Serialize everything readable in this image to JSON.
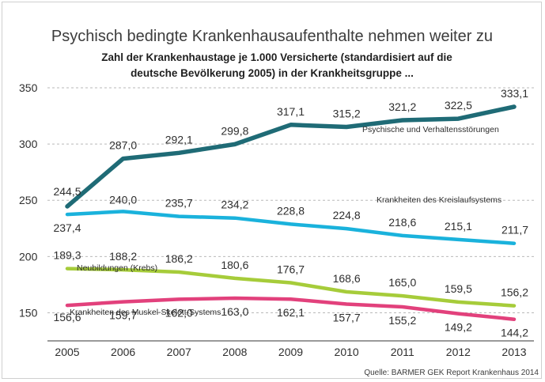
{
  "chart_data": {
    "type": "line",
    "title": "Psychisch bedingte Krankenhausaufenthalte nehmen weiter zu",
    "subtitle_lines": [
      "Zahl der Krankenhaustage je 1.000 Versicherte (standardisiert auf die",
      "deutsche Bevölkerung 2005) in der Krankheitsgruppe ..."
    ],
    "xlabel": "",
    "ylabel": "",
    "x": [
      "2005",
      "2006",
      "2007",
      "2008",
      "2009",
      "2010",
      "2011",
      "2012",
      "2013"
    ],
    "ylim": [
      125,
      350
    ],
    "yticks": [
      150,
      200,
      250,
      300,
      350
    ],
    "series": [
      {
        "name": "Psychische und Verhaltensstörungen",
        "color": "#1f6b76",
        "values": [
          244.5,
          287.0,
          292.1,
          299.8,
          317.1,
          315.2,
          321.2,
          322.5,
          333.1
        ],
        "labels": [
          "244,5",
          "287,0",
          "292,1",
          "299,8",
          "317,1",
          "315,2",
          "321,2",
          "322,5",
          "333,1"
        ]
      },
      {
        "name": "Krankheiten des Kreislaufsystems",
        "color": "#1ab2dc",
        "values": [
          237.4,
          240.0,
          235.7,
          234.2,
          228.8,
          224.8,
          218.6,
          215.1,
          211.7
        ],
        "labels": [
          "237,4",
          "240,0",
          "235,7",
          "234,2",
          "228,8",
          "224,8",
          "218,6",
          "215,1",
          "211,7"
        ]
      },
      {
        "name": "Neubildungen (Krebs)",
        "color": "#a6cc3a",
        "values": [
          189.3,
          188.2,
          186.2,
          180.6,
          176.7,
          168.6,
          165.0,
          159.5,
          156.2
        ],
        "labels": [
          "189,3",
          "188,2",
          "186,2",
          "180,6",
          "176,7",
          "168,6",
          "165,0",
          "159,5",
          "156,2"
        ]
      },
      {
        "name": "Krankheiten des Muskel-Skelett-Systems",
        "color": "#e2417c",
        "values": [
          156.6,
          159.7,
          162.0,
          163.0,
          162.1,
          157.7,
          155.2,
          149.2,
          144.2
        ],
        "labels": [
          "156,6",
          "159,7",
          "162,0",
          "163,0",
          "162,1",
          "157,7",
          "155,2",
          "149,2",
          "144,2"
        ]
      }
    ],
    "grid": true,
    "source": "Quelle: BARMER GEK Report Krankenhaus 2014"
  }
}
